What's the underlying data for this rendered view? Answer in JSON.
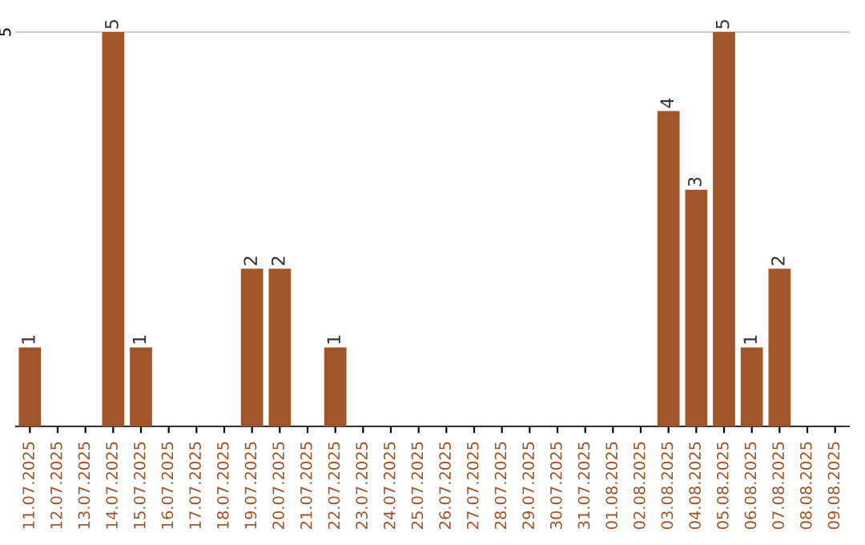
{
  "chart_data": {
    "type": "bar",
    "categories": [
      "11.07.2025",
      "12.07.2025",
      "13.07.2025",
      "14.07.2025",
      "15.07.2025",
      "16.07.2025",
      "17.07.2025",
      "18.07.2025",
      "19.07.2025",
      "20.07.2025",
      "21.07.2025",
      "22.07.2025",
      "23.07.2025",
      "24.07.2025",
      "25.07.2025",
      "26.07.2025",
      "27.07.2025",
      "28.07.2025",
      "29.07.2025",
      "30.07.2025",
      "31.07.2025",
      "01.08.2025",
      "02.08.2025",
      "03.08.2025",
      "04.08.2025",
      "05.08.2025",
      "06.08.2025",
      "07.08.2025",
      "08.08.2025",
      "09.08.2025"
    ],
    "values": [
      1,
      0,
      0,
      5,
      1,
      0,
      0,
      0,
      2,
      2,
      0,
      1,
      0,
      0,
      0,
      0,
      0,
      0,
      0,
      0,
      0,
      0,
      0,
      4,
      3,
      5,
      1,
      2,
      0,
      0
    ],
    "value_labels": [
      "1",
      null,
      null,
      "5",
      "1",
      null,
      null,
      null,
      "2",
      "2",
      null,
      "1",
      null,
      null,
      null,
      null,
      null,
      null,
      null,
      null,
      null,
      null,
      null,
      "4",
      "3",
      "5",
      "1",
      "2",
      null,
      null
    ],
    "color": "#a0552a",
    "ylim": [
      0,
      5
    ],
    "yticks": [
      {
        "value": 0,
        "label": null
      },
      5
    ],
    "grid": "y"
  }
}
